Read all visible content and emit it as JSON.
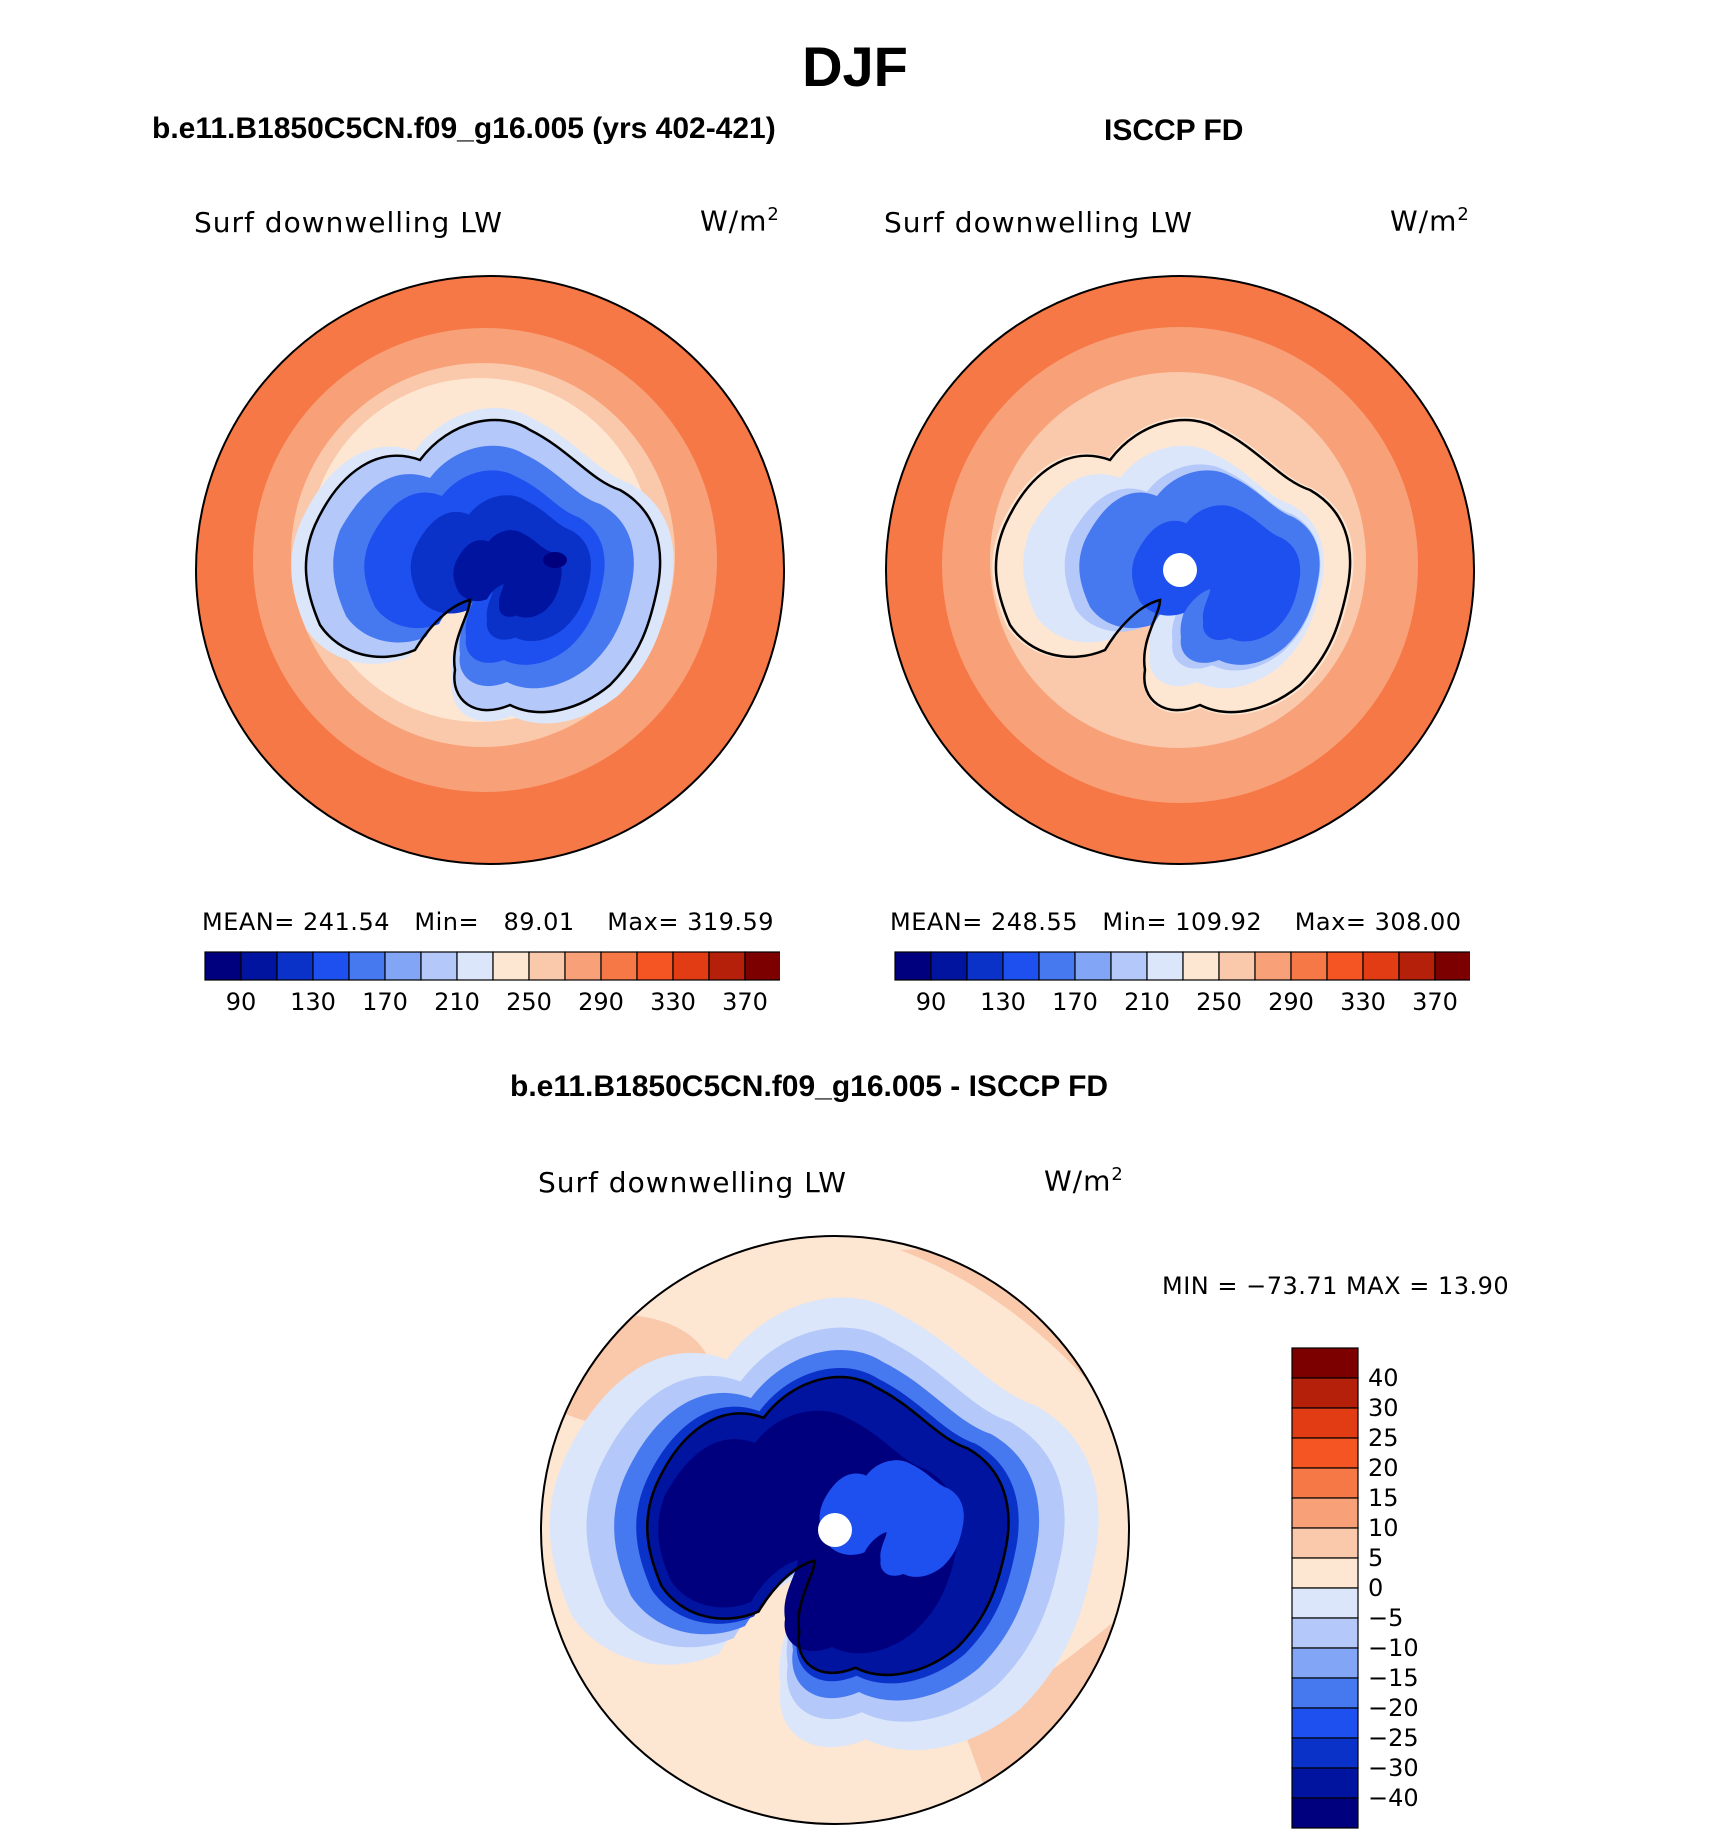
{
  "figure": {
    "season": "DJF",
    "variable": "Surf downwelling LW",
    "units": "W/m",
    "units_superscript": "2"
  },
  "panels": {
    "model": {
      "title": "b.e11.B1850C5CN.f09_g16.005 (yrs 402-421)",
      "mean_label": "MEAN=",
      "mean": "241.54",
      "min_label": "Min=",
      "min": "89.01",
      "max_label": "Max=",
      "max": "319.59"
    },
    "obs": {
      "title": "ISCCP FD",
      "mean_label": "MEAN=",
      "mean": "248.55",
      "min_label": "Min=",
      "min": "109.92",
      "max_label": "Max=",
      "max": "308.00"
    },
    "diff": {
      "title": "b.e11.B1850C5CN.f09_g16.005 - ISCCP FD",
      "minmax_text": "MIN = −73.71  MAX =   13.90"
    }
  },
  "colorbar_abs": {
    "colors": [
      "#00007f",
      "#0014a0",
      "#0a32c8",
      "#1e50f0",
      "#4678f0",
      "#82a5f5",
      "#b4c8fa",
      "#dce6fa",
      "#fde6d2",
      "#fac8aa",
      "#f8a078",
      "#f67846",
      "#f55523",
      "#e23c14",
      "#b4200a",
      "#7d0000"
    ],
    "labels": [
      "90",
      "130",
      "170",
      "210",
      "250",
      "290",
      "330",
      "370"
    ]
  },
  "colorbar_diff": {
    "colors": [
      "#00007f",
      "#0014a0",
      "#0a32c8",
      "#1e50f0",
      "#4678f0",
      "#82a5f5",
      "#b4c8fa",
      "#dce6fa",
      "#fde6d2",
      "#fac8aa",
      "#f8a078",
      "#f67846",
      "#f55523",
      "#e23c14",
      "#b4200a",
      "#7d0000"
    ],
    "labels": [
      "40",
      "30",
      "25",
      "20",
      "15",
      "10",
      "5",
      "0",
      "−5",
      "−10",
      "−15",
      "−20",
      "−25",
      "−30",
      "−40"
    ]
  }
}
